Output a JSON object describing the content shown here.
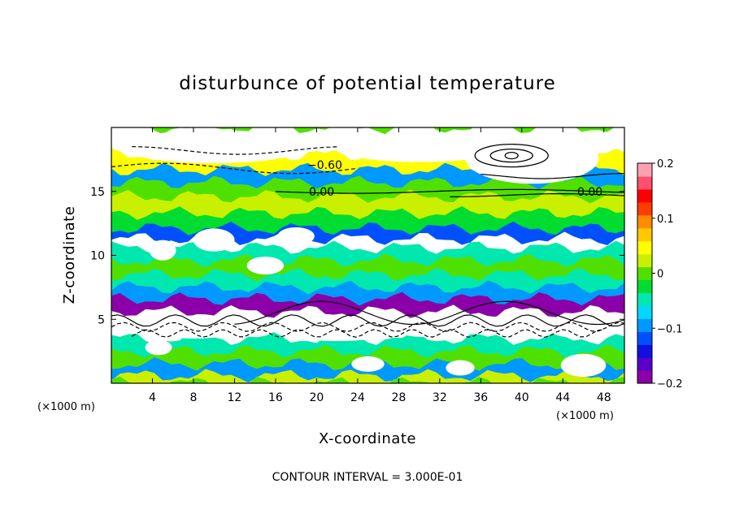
{
  "chart_data": {
    "type": "heatmap",
    "title": "disturbunce of potential temperature",
    "xlabel": "X-coordinate",
    "ylabel": "Z-coordinate",
    "x_unit": "(×1000 m)",
    "x_unit_right": "(×1000 m)",
    "xlim": [
      0,
      50
    ],
    "ylim": [
      0,
      20
    ],
    "x_ticks": [
      4,
      8,
      12,
      16,
      20,
      24,
      28,
      32,
      36,
      40,
      44,
      48
    ],
    "y_ticks": [
      5,
      10,
      15
    ],
    "colorbar": {
      "range": [
        -0.2,
        0.2
      ],
      "tick_labels": [
        "0.2",
        "0.1",
        "0",
        "−0.1",
        "−0.2"
      ],
      "tick_values": [
        0.2,
        0.1,
        0,
        -0.1,
        -0.2
      ],
      "colors": [
        "#8b00a8",
        "#5a00c8",
        "#1010e0",
        "#0050ff",
        "#0099ff",
        "#00d8ff",
        "#00e8b0",
        "#00dd30",
        "#50e000",
        "#c8f000",
        "#ffff00",
        "#ffc800",
        "#ff8c00",
        "#ff3c00",
        "#ff0000",
        "#ff5070",
        "#ffa0b0"
      ]
    },
    "contour_labels": [
      "−0.60",
      "0.00",
      "0.00"
    ],
    "contour_interval_text": "CONTOUR INTERVAL = 3.000E-01",
    "bands": [
      {
        "z": 18.5,
        "value": 0.25
      },
      {
        "z": 17.2,
        "value": 0.05
      },
      {
        "z": 16.2,
        "value": -0.1
      },
      {
        "z": 15.2,
        "value": 0.0
      },
      {
        "z": 14.0,
        "value": 0.02
      },
      {
        "z": 12.6,
        "value": -0.03
      },
      {
        "z": 11.6,
        "value": -0.12
      },
      {
        "z": 11.0,
        "value": -0.22
      },
      {
        "z": 10.2,
        "value": -0.05
      },
      {
        "z": 9.0,
        "value": 0.0
      },
      {
        "z": 8.0,
        "value": -0.04
      },
      {
        "z": 7.0,
        "value": -0.1
      },
      {
        "z": 6.2,
        "value": -0.2
      },
      {
        "z": 5.0,
        "value": 0.25
      },
      {
        "z": 4.0,
        "value": 0.25
      },
      {
        "z": 3.0,
        "value": -0.05
      },
      {
        "z": 2.0,
        "value": 0.0
      },
      {
        "z": 1.0,
        "value": -0.1
      },
      {
        "z": 0.2,
        "value": 0.02
      }
    ]
  }
}
